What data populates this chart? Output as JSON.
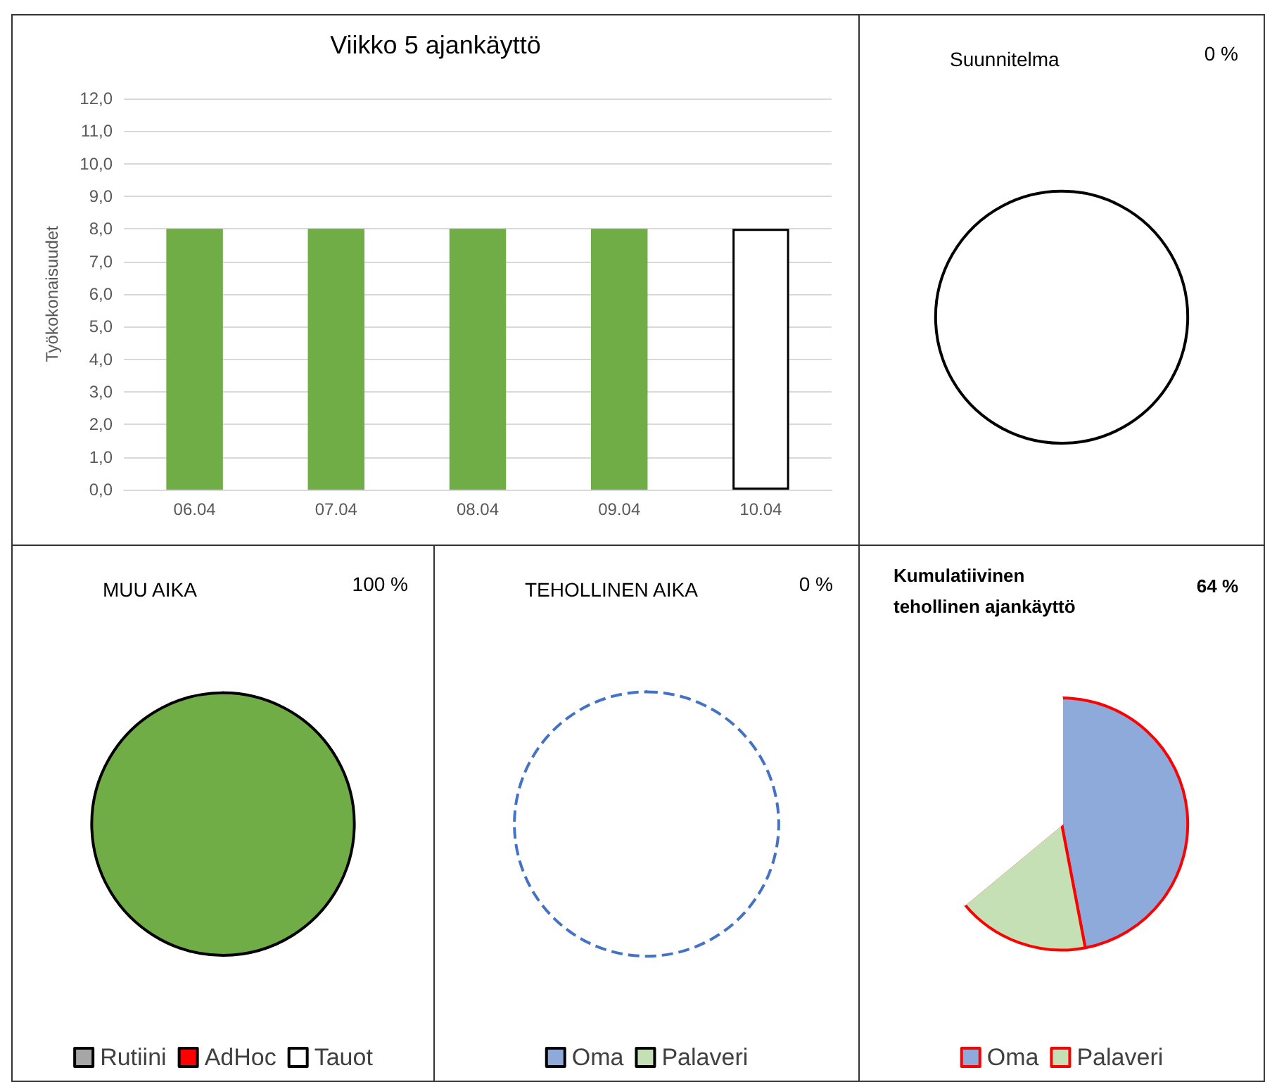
{
  "chart_data": [
    {
      "type": "bar",
      "title": "Viikko 5 ajankäyttö",
      "ylabel": "Työkokonaisuudet",
      "categories": [
        "06.04",
        "07.04",
        "08.04",
        "09.04",
        "10.04"
      ],
      "values": [
        8,
        8,
        8,
        8,
        8
      ],
      "colors": [
        "#70ad47",
        "#70ad47",
        "#70ad47",
        "#70ad47",
        "#ffffff"
      ],
      "ylim": [
        0,
        12
      ],
      "yticks": [
        {
          "value": 0,
          "label": "0,0"
        },
        {
          "value": 1,
          "label": "1,0"
        },
        {
          "value": 2,
          "label": "2,0"
        },
        {
          "value": 3,
          "label": "3,0"
        },
        {
          "value": 4,
          "label": "4,0"
        },
        {
          "value": 5,
          "label": "5,0"
        },
        {
          "value": 6,
          "label": "6,0"
        },
        {
          "value": 7,
          "label": "7,0"
        },
        {
          "value": 8,
          "label": "8,0"
        },
        {
          "value": 9,
          "label": "9,0"
        },
        {
          "value": 10,
          "label": "10,0"
        },
        {
          "value": 11,
          "label": "11,0"
        },
        {
          "value": 12,
          "label": "12,0"
        }
      ],
      "grid": "y",
      "legend": false
    },
    {
      "type": "pie",
      "title": "Suunnitelma",
      "annotations": [
        "0 %"
      ],
      "categories": [
        null
      ],
      "values": [
        100
      ],
      "colors": [
        "#ffffff"
      ],
      "legend": false
    },
    {
      "type": "pie",
      "title": "MUU AIKA",
      "annotations": [
        "100 %"
      ],
      "categories": [
        "Rutiini",
        "AdHoc",
        "Tauot",
        null
      ],
      "values": [
        0,
        0,
        0,
        100
      ],
      "colors": [
        "#a6a6a6",
        "#ff0000",
        "#ffffff",
        "#70ad47"
      ],
      "legend": "bottom"
    },
    {
      "type": "pie",
      "title": "TEHOLLINEN AIKA",
      "annotations": [
        "0 %"
      ],
      "categories": [
        "Oma",
        "Palaveri",
        null
      ],
      "values": [
        0,
        0,
        100
      ],
      "colors": [
        "#8eaadb",
        "#c5e0b4",
        "#ffffff"
      ],
      "legend": "bottom"
    },
    {
      "type": "pie",
      "title": "Kumulatiivinen tehollinen ajankäyttö",
      "annotations": [
        "64 %"
      ],
      "categories": [
        "Oma",
        "Palaveri",
        null
      ],
      "values": [
        47,
        17,
        36
      ],
      "colors": [
        "#8eaadb",
        "#c5e0b4",
        "#ffffff"
      ],
      "legend": "bottom"
    }
  ]
}
